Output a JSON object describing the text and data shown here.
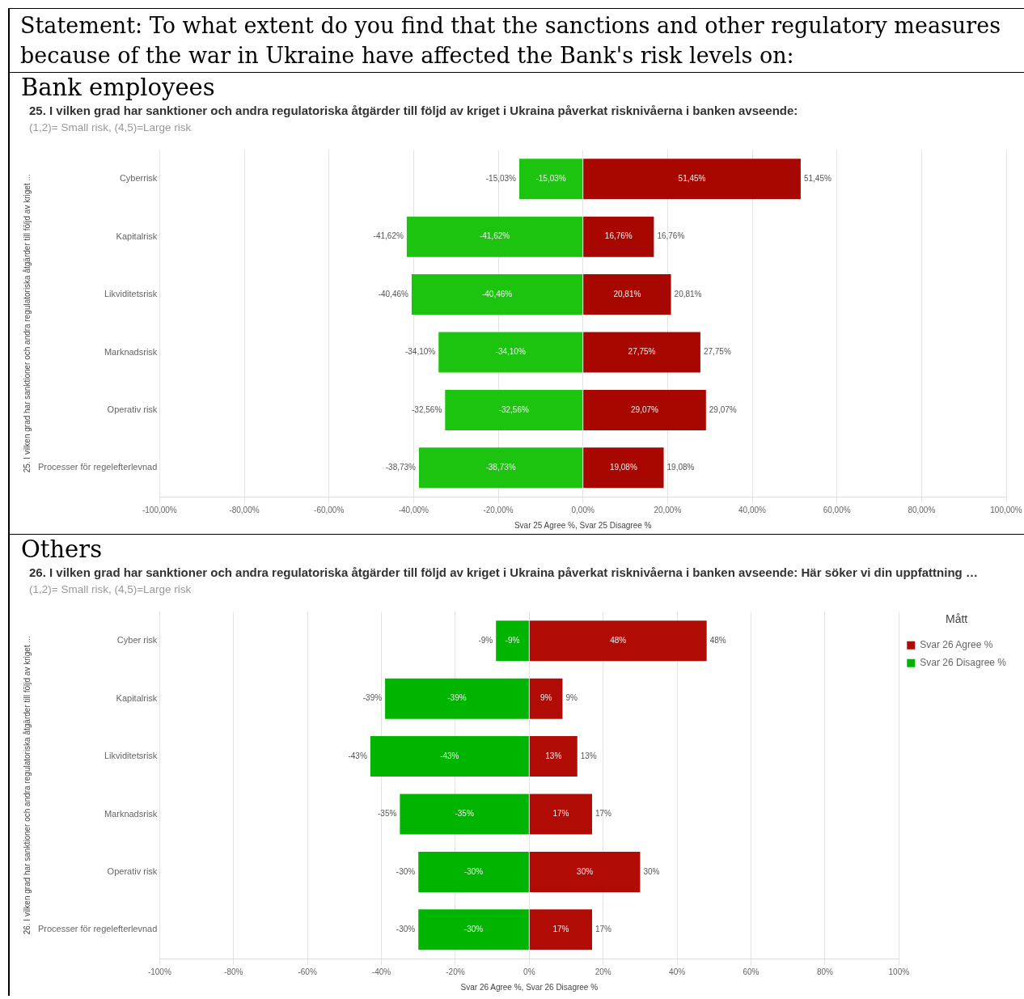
{
  "chart_data": [
    {
      "type": "bar",
      "orientation": "horizontal",
      "stacked": true,
      "title": "25. I vilken grad har sanktioner och andra regulatoriska åtgärder till följd av kriget i Ukraina påverkat risknivåerna i banken avseende:",
      "subtitle": "(1,2)= Small risk, (4,5)=Large risk",
      "annotations": [
        "Statement: To what extent do you find that the sanctions and other regulatory measures because of the war in Ukraine have affected the Bank's risk levels on:",
        "Bank employees"
      ],
      "xlabel": "Svar 25 Agree %, Svar 25 Disagree %",
      "ylabel": "25. I vilken grad har sanktioner och andra regulatoriska åtgärder till följd av kriget ...",
      "categories": [
        "Cyberrisk",
        "Kapitalrisk",
        "Likviditetsrisk",
        "Marknadsrisk",
        "Operativ risk",
        "Processer för regelefterlevnad"
      ],
      "series": [
        {
          "color": "#a80700",
          "values": [
            51.45,
            16.76,
            20.81,
            27.75,
            29.07,
            19.08
          ],
          "value_labels": [
            "51,45%",
            "16,76%",
            "20,81%",
            "27,75%",
            "29,07%",
            "19,08%"
          ]
        },
        {
          "color": "#1dc40f",
          "values": [
            -15.03,
            -41.62,
            -40.46,
            -34.1,
            -32.56,
            -38.73
          ],
          "value_labels": [
            "-15,03%",
            "-41,62%",
            "-40,46%",
            "-34,10%",
            "-32,56%",
            "-38,73%"
          ]
        }
      ],
      "xlim": [
        -100,
        100
      ],
      "xticks": [
        {
          "value": -100,
          "label": "-100,00%"
        },
        {
          "value": -80,
          "label": "-80,00%"
        },
        {
          "value": -60,
          "label": "-60,00%"
        },
        {
          "value": -40,
          "label": "-40,00%"
        },
        {
          "value": -20,
          "label": "-20,00%"
        },
        {
          "value": 0,
          "label": "0,00%"
        },
        {
          "value": 20,
          "label": "20,00%"
        },
        {
          "value": 40,
          "label": "40,00%"
        },
        {
          "value": 60,
          "label": "60,00%"
        },
        {
          "value": 80,
          "label": "80,00%"
        },
        {
          "value": 100,
          "label": "100,00%"
        }
      ],
      "grid": "x"
    },
    {
      "type": "bar",
      "orientation": "horizontal",
      "stacked": true,
      "title": "26. I vilken grad har sanktioner och andra regulatoriska åtgärder till följd av kriget i Ukraina påverkat risknivåerna i banken avseende: Här söker vi din uppfattning …",
      "subtitle": "(1,2)= Small risk, (4,5)=Large risk",
      "annotations": [
        "Others"
      ],
      "xlabel": "Svar 26 Agree %, Svar 26 Disagree %",
      "ylabel": "26. I vilken grad har sanktioner och andra regulatoriska åtgärder till följd av kriget ...",
      "legend_title": "Mått",
      "legend": "top right",
      "categories": [
        "Cyber risk",
        "Kapitalrisk",
        "Likviditetsrisk",
        "Marknadsrisk",
        "Operativ risk",
        "Processer för regelefterlevnad"
      ],
      "series": [
        {
          "name": "Svar 26 Agree %",
          "color": "#b00b05",
          "values": [
            48,
            9,
            13,
            17,
            30,
            17
          ],
          "value_labels": [
            "48%",
            "9%",
            "13%",
            "17%",
            "30%",
            "17%"
          ]
        },
        {
          "name": "Svar 26 Disagree %",
          "color": "#00b400",
          "values": [
            -9,
            -39,
            -43,
            -35,
            -30,
            -30
          ],
          "value_labels": [
            "-9%",
            "-39%",
            "-43%",
            "-35%",
            "-30%",
            "-30%"
          ]
        }
      ],
      "xlim": [
        -100,
        100
      ],
      "xticks": [
        {
          "value": -100,
          "label": "-100%"
        },
        {
          "value": -80,
          "label": "-80%"
        },
        {
          "value": -60,
          "label": "-60%"
        },
        {
          "value": -40,
          "label": "-40%"
        },
        {
          "value": -20,
          "label": "-20%"
        },
        {
          "value": 0,
          "label": "0%"
        },
        {
          "value": 20,
          "label": "20%"
        },
        {
          "value": 40,
          "label": "40%"
        },
        {
          "value": 60,
          "label": "60%"
        },
        {
          "value": 80,
          "label": "80%"
        },
        {
          "value": 100,
          "label": "100%"
        }
      ],
      "grid": "x"
    }
  ]
}
